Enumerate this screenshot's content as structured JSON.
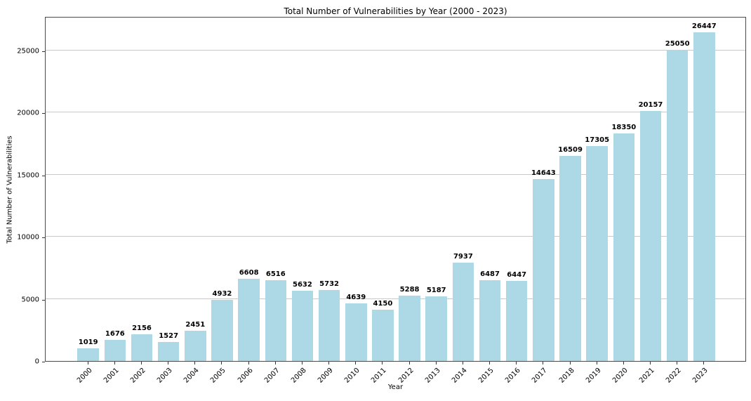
{
  "chart_data": {
    "type": "bar",
    "title": "Total Number of Vulnerabilities by Year (2000 - 2023)",
    "xlabel": "Year",
    "ylabel": "Total Number of Vulnerabilities",
    "categories": [
      "2000",
      "2001",
      "2002",
      "2003",
      "2004",
      "2005",
      "2006",
      "2007",
      "2008",
      "2009",
      "2010",
      "2011",
      "2012",
      "2013",
      "2014",
      "2015",
      "2016",
      "2017",
      "2018",
      "2019",
      "2020",
      "2021",
      "2022",
      "2023"
    ],
    "values": [
      1019,
      1676,
      2156,
      1527,
      2451,
      4932,
      6608,
      6516,
      5632,
      5732,
      4639,
      4150,
      5288,
      5187,
      7937,
      6487,
      6447,
      14643,
      16509,
      17305,
      18350,
      20157,
      25050,
      26447
    ],
    "bar_labels": [
      "1019",
      "1676",
      "2156",
      "1527",
      "2451",
      "4932",
      "6608",
      "6516",
      "5632",
      "5732",
      "4639",
      "4150",
      "5288",
      "5187",
      "7937",
      "6487",
      "6447",
      "14643",
      "16509",
      "17305",
      "18350",
      "20157",
      "25050",
      "26447"
    ],
    "yticks": [
      0,
      5000,
      10000,
      15000,
      20000,
      25000
    ],
    "ytick_labels": [
      "0",
      "5000",
      "10000",
      "15000",
      "20000",
      "25000"
    ],
    "ylim": [
      0,
      27769
    ],
    "grid": "horizontal",
    "legend": "none",
    "xtick_rotation_deg": 45,
    "colors": {
      "bar_fill": "#ADD8E6",
      "gridline": "#c8c8c8",
      "spine": "#4a4a4a",
      "text": "#000000",
      "background": "#ffffff"
    }
  }
}
